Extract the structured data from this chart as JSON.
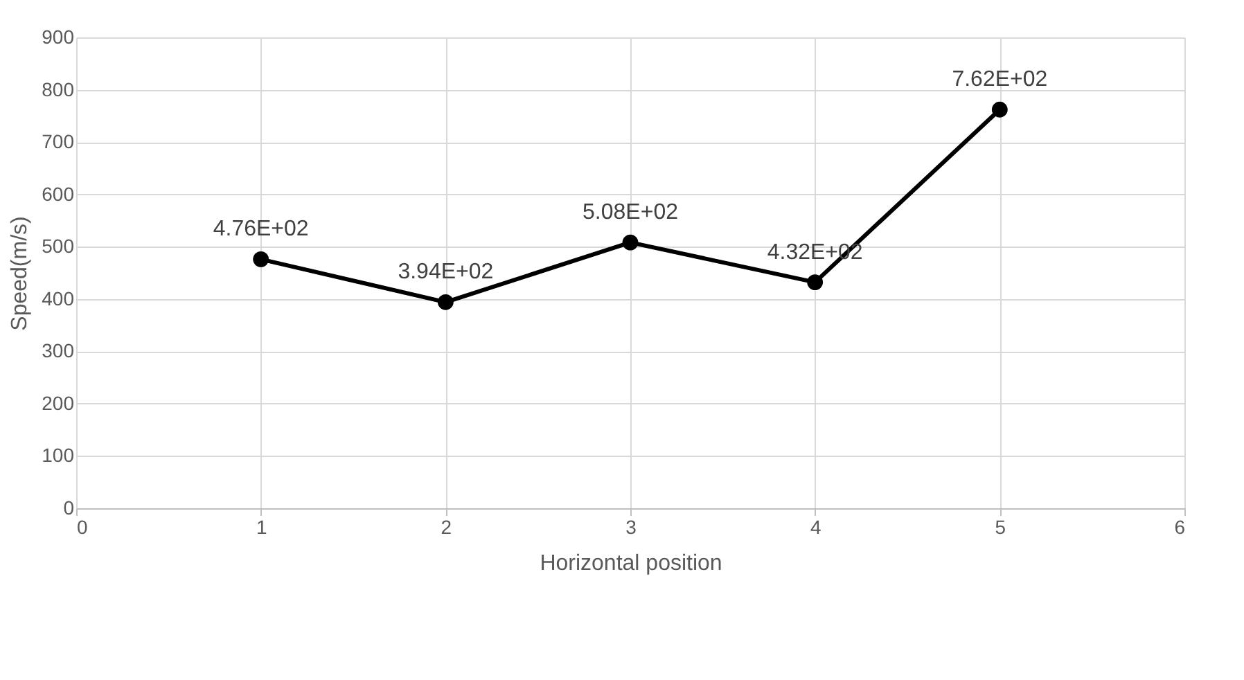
{
  "chart_data": {
    "type": "line",
    "xlabel": "Horizontal position",
    "ylabel": "Speed(m/s)",
    "x": [
      1,
      2,
      3,
      4,
      5
    ],
    "series": [
      {
        "color": "#000000",
        "values": [
          476,
          394,
          508,
          432,
          762
        ],
        "value_labels": [
          "4.76E+02",
          "3.94E+02",
          "5.08E+02",
          "4.32E+02",
          "7.62E+02"
        ]
      }
    ],
    "xlim": [
      0,
      6
    ],
    "xticks": [
      0,
      1,
      2,
      3,
      4,
      5,
      6
    ],
    "ylim": [
      0,
      900
    ],
    "yticks": [
      0,
      100,
      200,
      300,
      400,
      500,
      600,
      700,
      800,
      900
    ],
    "grid": true,
    "marker": "circle",
    "line_style": "solid"
  }
}
